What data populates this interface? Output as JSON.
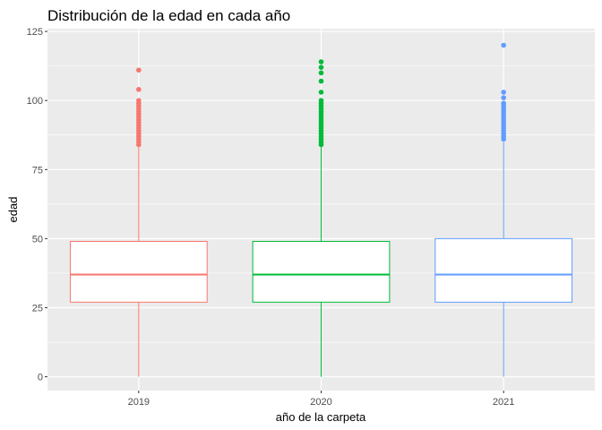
{
  "chart_data": {
    "type": "boxplot",
    "title": "Distribución de la edad en cada año",
    "xlabel": "año de la carpeta",
    "ylabel": "edad",
    "ylim": [
      -5,
      126
    ],
    "yticks": [
      0,
      25,
      50,
      75,
      100,
      125
    ],
    "grid": true,
    "legend": "none",
    "background": "#ebebeb",
    "gridline_color": "#ffffff",
    "categories": [
      "2019",
      "2020",
      "2021"
    ],
    "series": [
      {
        "category": "2019",
        "color": "#f8766d",
        "min": 0,
        "q1": 27,
        "median": 37,
        "q3": 49,
        "whisker_high": 83,
        "outliers": [
          84,
          85,
          86,
          87,
          88,
          89,
          90,
          91,
          92,
          93,
          94,
          95,
          96,
          97,
          98,
          99,
          100,
          104,
          111
        ]
      },
      {
        "category": "2020",
        "color": "#00ba38",
        "min": 0,
        "q1": 27,
        "median": 37,
        "q3": 49,
        "whisker_high": 83,
        "outliers": [
          84,
          85,
          86,
          87,
          88,
          89,
          90,
          91,
          92,
          93,
          94,
          95,
          96,
          97,
          98,
          99,
          100,
          103,
          107,
          110,
          112,
          114
        ]
      },
      {
        "category": "2021",
        "color": "#619cff",
        "min": 0,
        "q1": 27,
        "median": 37,
        "q3": 50,
        "whisker_high": 85,
        "outliers": [
          86,
          87,
          88,
          89,
          90,
          91,
          92,
          93,
          94,
          95,
          96,
          97,
          98,
          99,
          101,
          103,
          120
        ]
      }
    ]
  }
}
